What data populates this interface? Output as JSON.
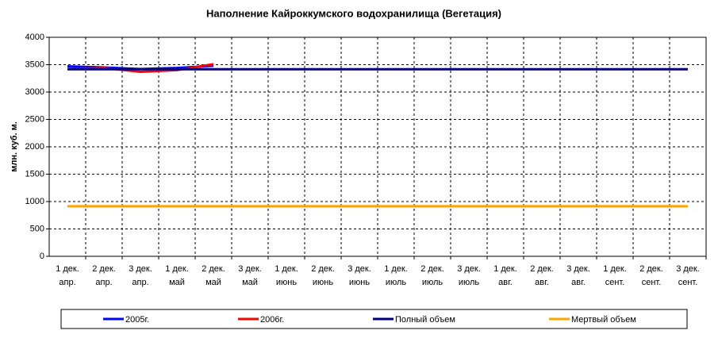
{
  "chart_data": {
    "type": "line",
    "title": "Наполнение Кайроккумского водохранилища (Вегетация)",
    "y_label": "млн. куб. м.",
    "categories": [
      "1 дек. апр.",
      "2 дек. апр.",
      "3 дек. апр.",
      "1 дек. май",
      "2 дек. май",
      "3 дек. май",
      "1 дек. июнь",
      "2 дек. июнь",
      "3 дек. июнь",
      "1 дек. июль",
      "2 дек. июль",
      "3 дек. июль",
      "1 дек. авг.",
      "2 дек. авг.",
      "3 дек. авг.",
      "1 дек. сент.",
      "2 дек. сент.",
      "3 дек. сент."
    ],
    "series": [
      {
        "name": "2005г.",
        "color": "#0000ff",
        "values": [
          3470,
          3450,
          3420,
          3440,
          3480,
          null,
          null,
          null,
          null,
          null,
          null,
          null,
          null,
          null,
          null,
          null,
          null,
          null
        ]
      },
      {
        "name": "2006г.",
        "color": "#ff0000",
        "values": [
          3420,
          3440,
          3370,
          3400,
          3510,
          null,
          null,
          null,
          null,
          null,
          null,
          null,
          null,
          null,
          null,
          null,
          null,
          null
        ]
      },
      {
        "name": "Полный объем",
        "color": "#000080",
        "values": [
          3416,
          3416,
          3416,
          3416,
          3416,
          3416,
          3416,
          3416,
          3416,
          3416,
          3416,
          3416,
          3416,
          3416,
          3416,
          3416,
          3416,
          3416
        ]
      },
      {
        "name": "Мертвый объем",
        "color": "#ffa500",
        "values": [
          915,
          915,
          915,
          915,
          915,
          915,
          915,
          915,
          915,
          915,
          915,
          915,
          915,
          915,
          915,
          915,
          915,
          915
        ]
      }
    ],
    "ylim": [
      0,
      4000
    ],
    "yticks": [
      0,
      500,
      1000,
      1500,
      2000,
      2500,
      3000,
      3500,
      4000
    ],
    "grid": true,
    "legend": "bottom"
  }
}
